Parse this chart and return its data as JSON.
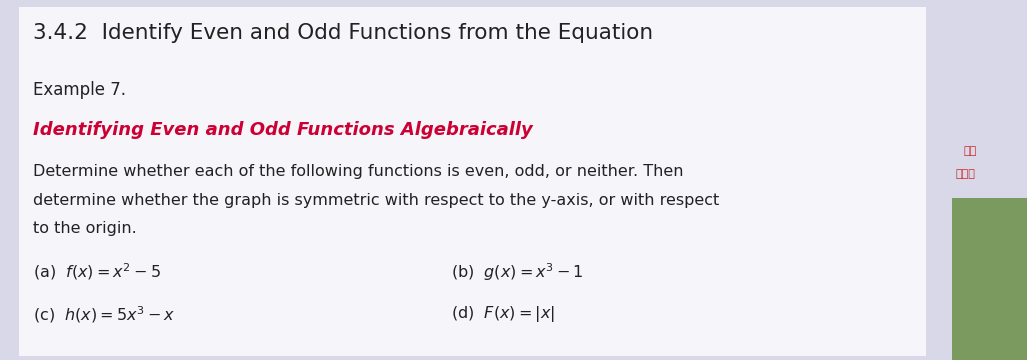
{
  "bg_color": "#d8d8e8",
  "slide_color": "#f0f0f6",
  "white_panel": "#f5f5fa",
  "dark_strip_color": "#1a1a1a",
  "right_panel_color": "#c8c8d0",
  "title": "3.4.2  Identify Even and Odd Functions from the Equation",
  "title_color": "#222222",
  "title_fontsize": 15.5,
  "example_label": "Example 7.",
  "example_fontsize": 12,
  "example_color": "#222222",
  "subtitle": "Identifying Even and Odd Functions Algebraically",
  "subtitle_color": "#cc0033",
  "subtitle_fontsize": 13,
  "body_line1": "Determine whether each of the following functions is even, odd, or neither. Then",
  "body_line2": "determine whether the graph is symmetric with respect to the y-axis, or with respect",
  "body_line3": "to the origin.",
  "body_fontsize": 11.5,
  "body_color": "#222222",
  "eq_fontsize": 11.5,
  "eq_color": "#222222",
  "eq_a": "(a)  $f(x) = x^2 - 5$",
  "eq_b": "(b)  $g(x) = x^3 - 1$",
  "eq_c": "(c)  $h(x) = 5x^3 - x$",
  "eq_d": "(d)  $F(x) = |x|$",
  "chinese_text1": "通逃",
  "chinese_text2": "规范术",
  "chinese_color": "#cc2222"
}
